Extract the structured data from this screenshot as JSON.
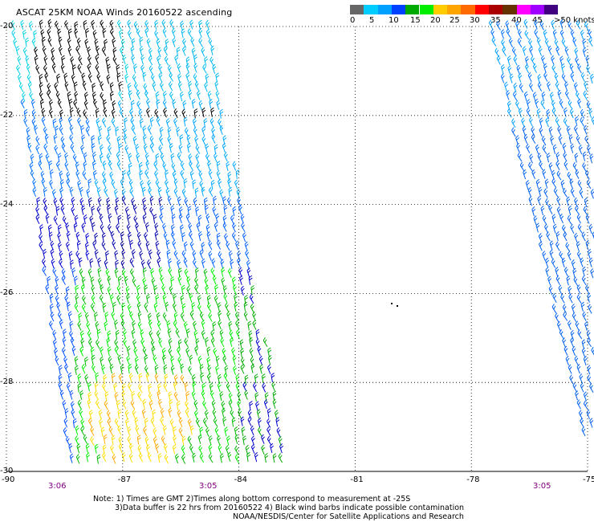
{
  "title": "ASCAT 25KM NOAA Winds 20160522 ascending",
  "colorbar": {
    "colors": [
      "#666666",
      "#00ccff",
      "#00a0ff",
      "#0040ff",
      "#00aa00",
      "#00ee00",
      "#ffcc00",
      "#ffa500",
      "#ff6a00",
      "#ff0000",
      "#aa0000",
      "#663300",
      "#ff00ff",
      "#a000ff",
      "#40007f"
    ],
    "labels": [
      "0",
      "5",
      "10",
      "15",
      "20",
      "25",
      "30",
      "35",
      "40",
      "45",
      ">50 knots"
    ]
  },
  "map": {
    "lat_labels": [
      "-20",
      "-22",
      "-24",
      "-26",
      "-28",
      "-30"
    ],
    "lon_labels": [
      "-90",
      "-87",
      "-84",
      "-81",
      "-78",
      "-75"
    ],
    "lat_range": [
      -30,
      -20
    ],
    "lon_range": [
      -90,
      -75
    ],
    "time_labels": [
      "3:06",
      "3:05",
      "3:05"
    ]
  },
  "notes": {
    "line1": "Note: 1) Times are GMT 2)Times along bottom correspond to measurement at -25S",
    "line2": "3)Data buffer is 22 hrs from 20160522 4) Black wind barbs indicate possible contamination",
    "line3": "NOAA/NESDIS/Center for Satellite Applications and Research"
  }
}
